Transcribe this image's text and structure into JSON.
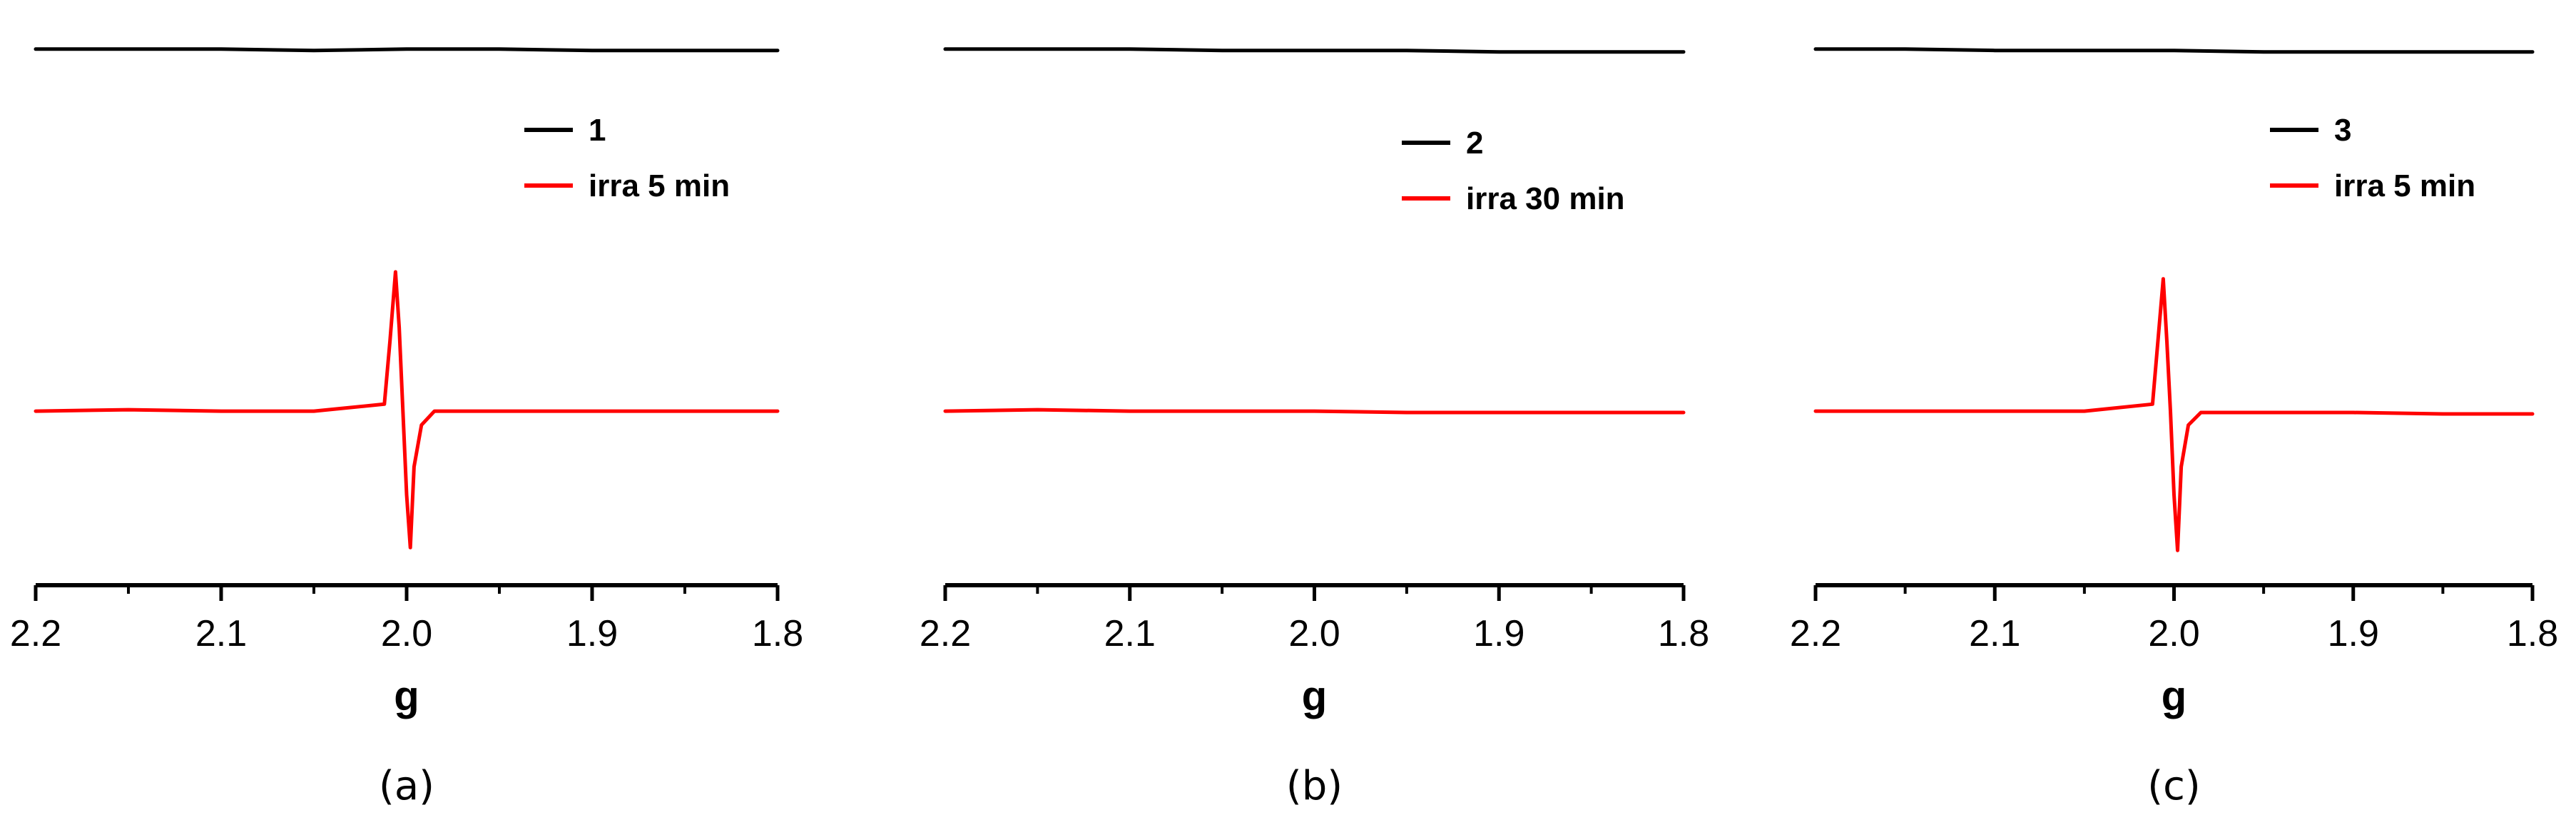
{
  "chart_data": [
    {
      "type": "line",
      "panel_label": "(a)",
      "xlabel": "g",
      "ylabel": "",
      "xlim": [
        2.2,
        1.8
      ],
      "x_reversed": true,
      "x_ticks": [
        2.2,
        2.1,
        2.0,
        1.9,
        1.8
      ],
      "x_tick_labels": [
        "2.2",
        "2.1",
        "2.0",
        "1.9",
        "1.8"
      ],
      "ylim": [
        -1.25,
        2.85
      ],
      "y_axis_visible": false,
      "grid": false,
      "legend_position": "top-right",
      "series": [
        {
          "name": "1",
          "color": "#000000",
          "x": [
            2.2,
            2.15,
            2.1,
            2.05,
            2.0,
            1.95,
            1.9,
            1.85,
            1.8
          ],
          "y": [
            2.6,
            2.6,
            2.6,
            2.59,
            2.6,
            2.6,
            2.59,
            2.59,
            2.59
          ]
        },
        {
          "name": "irra 5 min",
          "color": "#ff0000",
          "x": [
            2.2,
            2.15,
            2.1,
            2.05,
            2.012,
            2.009,
            2.006,
            2.004,
            2.002,
            2.0,
            1.998,
            1.996,
            1.992,
            1.985,
            1.95,
            1.9,
            1.85,
            1.8
          ],
          "y": [
            0.0,
            0.01,
            0.0,
            0.0,
            0.05,
            0.5,
            1.0,
            0.6,
            0.0,
            -0.6,
            -0.98,
            -0.4,
            -0.1,
            0.0,
            0.0,
            0.0,
            0.0,
            0.0
          ]
        }
      ]
    },
    {
      "type": "line",
      "panel_label": "(b)",
      "xlabel": "g",
      "ylabel": "",
      "xlim": [
        2.2,
        1.8
      ],
      "x_reversed": true,
      "x_ticks": [
        2.2,
        2.1,
        2.0,
        1.9,
        1.8
      ],
      "x_tick_labels": [
        "2.2",
        "2.1",
        "2.0",
        "1.9",
        "1.8"
      ],
      "ylim": [
        -1.25,
        2.85
      ],
      "y_axis_visible": false,
      "grid": false,
      "legend_position": "top-right",
      "series": [
        {
          "name": "2",
          "color": "#000000",
          "x": [
            2.2,
            2.15,
            2.1,
            2.05,
            2.0,
            1.95,
            1.9,
            1.85,
            1.8
          ],
          "y": [
            2.6,
            2.6,
            2.6,
            2.59,
            2.59,
            2.59,
            2.58,
            2.58,
            2.58
          ]
        },
        {
          "name": "irra 30 min",
          "color": "#ff0000",
          "x": [
            2.2,
            2.15,
            2.1,
            2.05,
            2.0,
            1.95,
            1.9,
            1.85,
            1.8
          ],
          "y": [
            0.0,
            0.01,
            0.0,
            0.0,
            0.0,
            -0.01,
            -0.01,
            -0.01,
            -0.01
          ]
        }
      ]
    },
    {
      "type": "line",
      "panel_label": "(c)",
      "xlabel": "g",
      "ylabel": "",
      "xlim": [
        2.2,
        1.8
      ],
      "x_reversed": true,
      "x_ticks": [
        2.2,
        2.1,
        2.0,
        1.9,
        1.8
      ],
      "x_tick_labels": [
        "2.2",
        "2.1",
        "2.0",
        "1.9",
        "1.8"
      ],
      "ylim": [
        -1.25,
        2.85
      ],
      "y_axis_visible": false,
      "grid": false,
      "legend_position": "top-right",
      "series": [
        {
          "name": "3",
          "color": "#000000",
          "x": [
            2.2,
            2.15,
            2.1,
            2.05,
            2.0,
            1.95,
            1.9,
            1.85,
            1.8
          ],
          "y": [
            2.6,
            2.6,
            2.59,
            2.59,
            2.59,
            2.58,
            2.58,
            2.58,
            2.58
          ]
        },
        {
          "name": "irra 5 min",
          "color": "#ff0000",
          "x": [
            2.2,
            2.15,
            2.1,
            2.05,
            2.012,
            2.009,
            2.006,
            2.004,
            2.002,
            2.0,
            1.998,
            1.996,
            1.992,
            1.985,
            1.95,
            1.9,
            1.85,
            1.8
          ],
          "y": [
            0.0,
            0.0,
            0.0,
            0.0,
            0.05,
            0.5,
            0.95,
            0.5,
            0.0,
            -0.6,
            -1.0,
            -0.4,
            -0.1,
            -0.01,
            -0.01,
            -0.01,
            -0.02,
            -0.02
          ]
        }
      ]
    }
  ]
}
